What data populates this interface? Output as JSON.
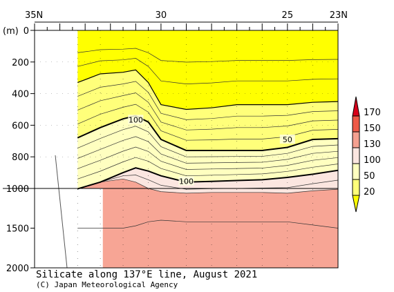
{
  "chart_data": {
    "type": "contour",
    "title": "Silicate along 137°E line, August 2021",
    "credit": "(C) Japan Meteorological Agency",
    "x_axis": {
      "range": [
        35,
        23
      ],
      "reversed": true,
      "ticks": [
        {
          "value": 35,
          "label": "35N"
        },
        {
          "value": 30,
          "label": "30"
        },
        {
          "value": 25,
          "label": "25"
        },
        {
          "value": 23,
          "label": "23N"
        }
      ]
    },
    "y_axis": {
      "unit_label": "(m)",
      "range": [
        0,
        2000
      ],
      "reversed": true,
      "axis_break_at": 1000,
      "upper_ticks": [
        0,
        200,
        400,
        600,
        800,
        1000
      ],
      "lower_ticks": [
        1500,
        2000
      ],
      "tick_labels": [
        "0",
        "200",
        "400",
        "600",
        "800",
        "1000",
        "1500",
        "2000"
      ]
    },
    "station_latitudes": [
      33.3,
      32.4,
      31.5,
      30.5,
      29.0,
      28.0,
      27.0,
      26.0,
      25.0,
      24.0,
      23.0
    ],
    "colorbar": {
      "levels": [
        "20",
        "50",
        "100",
        "130",
        "150",
        "170"
      ],
      "colors": [
        "#ffff00",
        "#ffff7a",
        "#ffffc0",
        "#fbe6e0",
        "#f4a090",
        "#ee5a48",
        "#d8001a"
      ]
    },
    "contour_labels": [
      {
        "text": "100",
        "lat": 31.0,
        "depth": 565
      },
      {
        "text": "50",
        "lat": 25.0,
        "depth": 690
      },
      {
        "text": "100",
        "lat": 29.0,
        "depth": 955
      }
    ],
    "reference_contours": [
      {
        "value": 50,
        "lat": [
          33.3,
          32.4,
          31.5,
          31.0,
          30.5,
          30.0,
          29.0,
          28.0,
          27.0,
          26.0,
          25.0,
          24.0,
          23.0
        ],
        "depth": [
          680,
          615,
          560,
          540,
          580,
          690,
          760,
          760,
          760,
          760,
          740,
          690,
          685
        ]
      },
      {
        "value": 100,
        "lat": [
          33.3,
          32.4,
          31.5,
          31.0,
          30.5,
          30.0,
          29.0,
          28.0,
          27.0,
          26.0,
          25.0,
          24.0,
          23.0
        ],
        "depth": [
          1005,
          960,
          900,
          870,
          890,
          920,
          960,
          955,
          950,
          945,
          930,
          910,
          885
        ]
      }
    ],
    "series": [
      {
        "name": "20",
        "values": [
          {
            "lat": 33.3,
            "depth": 330
          },
          {
            "lat": 31.5,
            "depth": 265
          },
          {
            "lat": 30.0,
            "depth": 510
          },
          {
            "lat": 23.0,
            "depth": 450
          }
        ]
      },
      {
        "name": "130",
        "values": [
          {
            "lat": 33.3,
            "depth": 1010
          },
          {
            "lat": 31.5,
            "depth": 920
          },
          {
            "lat": 30.0,
            "depth": 1000
          },
          {
            "lat": 23.0,
            "depth": 1000
          }
        ]
      }
    ],
    "annotations": [
      "100",
      "50",
      "100"
    ],
    "grid": "dotted",
    "legend": "colorbar-right"
  }
}
